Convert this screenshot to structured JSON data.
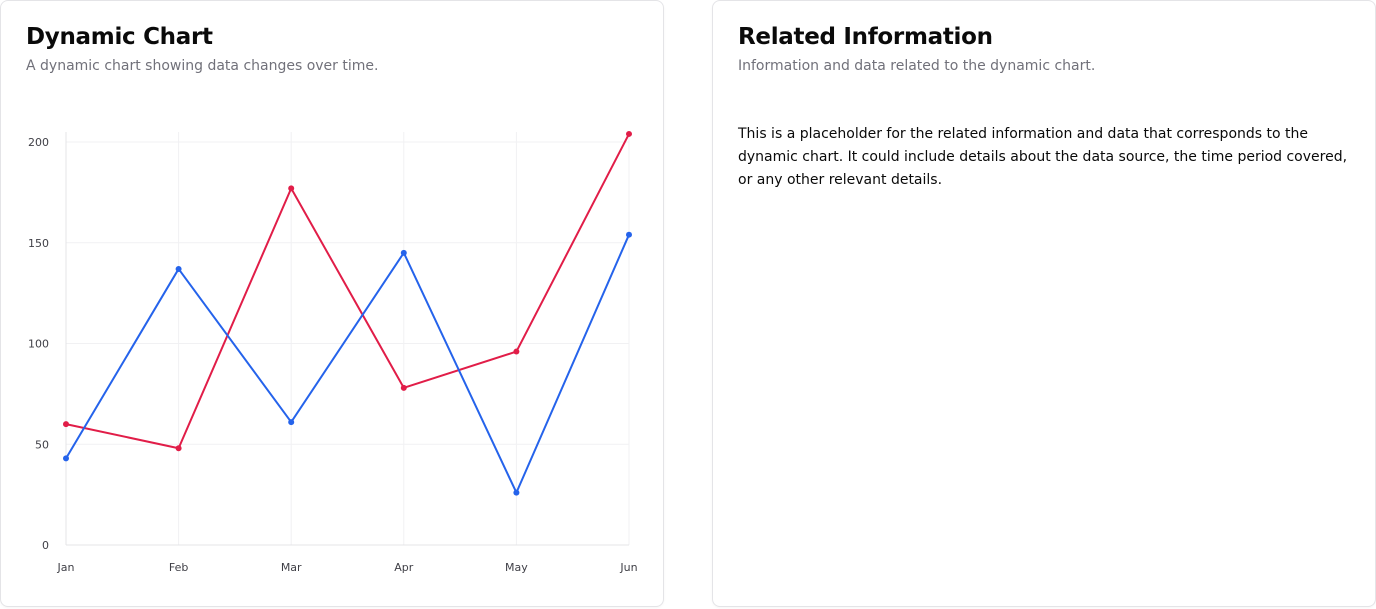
{
  "chart_card": {
    "title": "Dynamic Chart",
    "description": "A dynamic chart showing data changes over time."
  },
  "info_card": {
    "title": "Related Information",
    "description": "Information and data related to the dynamic chart.",
    "body": "This is a placeholder for the related information and data that corresponds to the dynamic chart. It could include details about the data source, the time period covered, or any other relevant details."
  },
  "chart_data": {
    "type": "line",
    "x": [
      "Jan",
      "Feb",
      "Mar",
      "Apr",
      "May",
      "Jun"
    ],
    "y_ticks": [
      0,
      50,
      100,
      150,
      200
    ],
    "ylim": [
      0,
      200
    ],
    "grid": true,
    "series": [
      {
        "color": "#e11d48",
        "values": [
          60,
          48,
          177,
          78,
          96,
          204
        ]
      },
      {
        "color": "#2563eb",
        "values": [
          43,
          137,
          61,
          145,
          26,
          154
        ]
      }
    ]
  }
}
